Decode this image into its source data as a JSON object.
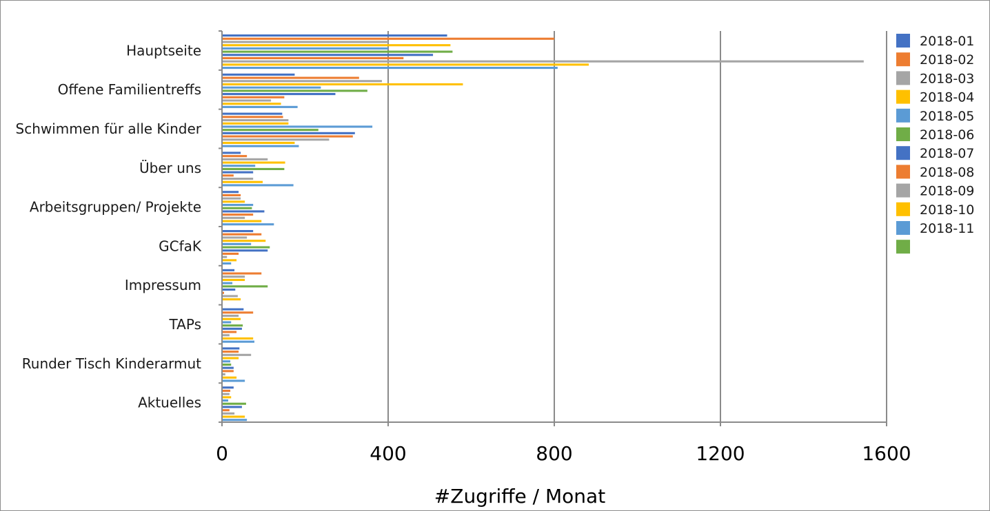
{
  "chart_data": {
    "type": "bar",
    "orientation": "horizontal",
    "title": "",
    "xlabel": "#Zugriffe / Monat",
    "ylabel": "",
    "xlim": [
      0,
      1600
    ],
    "xticks": [
      0,
      400,
      800,
      1200,
      1600
    ],
    "grid": true,
    "legend_position": "right",
    "categories": [
      "Hauptseite",
      "Offene Familientreffs",
      "Schwimmen für alle Kinder",
      "Über uns",
      "Arbeitsgruppen/ Projekte",
      "GCfaK",
      "Impressum",
      "TAPs",
      "Runder Tisch Kinderarmut",
      "Aktuelles"
    ],
    "series": [
      {
        "name": "2018-01",
        "color": "#4472C4",
        "values": [
          542,
          175,
          145,
          45,
          40,
          75,
          30,
          52,
          42,
          28
        ]
      },
      {
        "name": "2018-02",
        "color": "#ED7D31",
        "values": [
          800,
          330,
          147,
          60,
          45,
          95,
          95,
          75,
          40,
          20
        ]
      },
      {
        "name": "2018-03",
        "color": "#A5A5A5",
        "values": [
          400,
          385,
          160,
          110,
          45,
          60,
          55,
          40,
          70,
          18
        ]
      },
      {
        "name": "2018-04",
        "color": "#FFC000",
        "values": [
          550,
          580,
          160,
          152,
          55,
          105,
          55,
          45,
          40,
          22
        ]
      },
      {
        "name": "2018-05",
        "color": "#5B9BD5",
        "values": [
          400,
          238,
          362,
          80,
          75,
          70,
          25,
          22,
          20,
          15
        ]
      },
      {
        "name": "2018-06",
        "color": "#70AD47",
        "values": [
          555,
          350,
          232,
          150,
          72,
          115,
          110,
          50,
          22,
          58
        ]
      },
      {
        "name": "2018-07",
        "color": "#4472C4",
        "values": [
          508,
          273,
          320,
          75,
          102,
          110,
          32,
          48,
          28,
          48
        ]
      },
      {
        "name": "2018-08",
        "color": "#ED7D31",
        "values": [
          437,
          150,
          315,
          28,
          75,
          40,
          5,
          35,
          28,
          18
        ]
      },
      {
        "name": "2018-09",
        "color": "#A5A5A5",
        "values": [
          1545,
          118,
          258,
          75,
          55,
          12,
          38,
          18,
          8,
          30
        ]
      },
      {
        "name": "2018-10",
        "color": "#FFC000",
        "values": [
          883,
          142,
          175,
          98,
          95,
          35,
          45,
          75,
          35,
          55
        ]
      },
      {
        "name": "2018-11",
        "color": "#5B9BD5",
        "values": [
          808,
          182,
          185,
          172,
          125,
          22,
          0,
          78,
          55,
          60
        ]
      },
      {
        "name": "",
        "color": "#70AD47",
        "values": [
          0,
          0,
          0,
          0,
          0,
          0,
          0,
          0,
          0,
          0
        ]
      }
    ]
  }
}
